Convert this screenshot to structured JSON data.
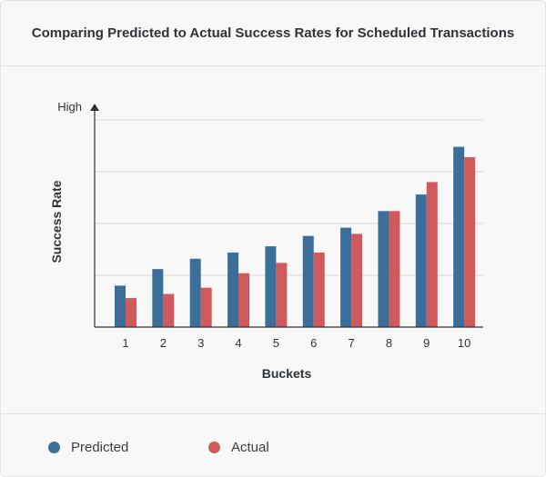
{
  "colors": {
    "predicted": "#3b6f9a",
    "actual": "#cf5a5c",
    "grid": "#d6d6d6",
    "axis": "#2f3337"
  },
  "legend": {
    "predicted_label": "Predicted",
    "actual_label": "Actual"
  },
  "chart_data": {
    "type": "bar",
    "title": "Comparing Predicted to Actual Success Rates for Scheduled Transactions",
    "xlabel": "Buckets",
    "ylabel": "Success Rate",
    "y_top_label": "High",
    "categories": [
      "1",
      "2",
      "3",
      "4",
      "5",
      "6",
      "7",
      "8",
      "9",
      "10"
    ],
    "series": [
      {
        "name": "Predicted",
        "values": [
          0.2,
          0.28,
          0.33,
          0.36,
          0.39,
          0.44,
          0.48,
          0.56,
          0.64,
          0.87
        ]
      },
      {
        "name": "Actual",
        "values": [
          0.14,
          0.16,
          0.19,
          0.26,
          0.31,
          0.36,
          0.45,
          0.56,
          0.7,
          0.82
        ]
      }
    ],
    "ylim": [
      0,
      1
    ],
    "grid": true,
    "legend_position": "bottom"
  }
}
